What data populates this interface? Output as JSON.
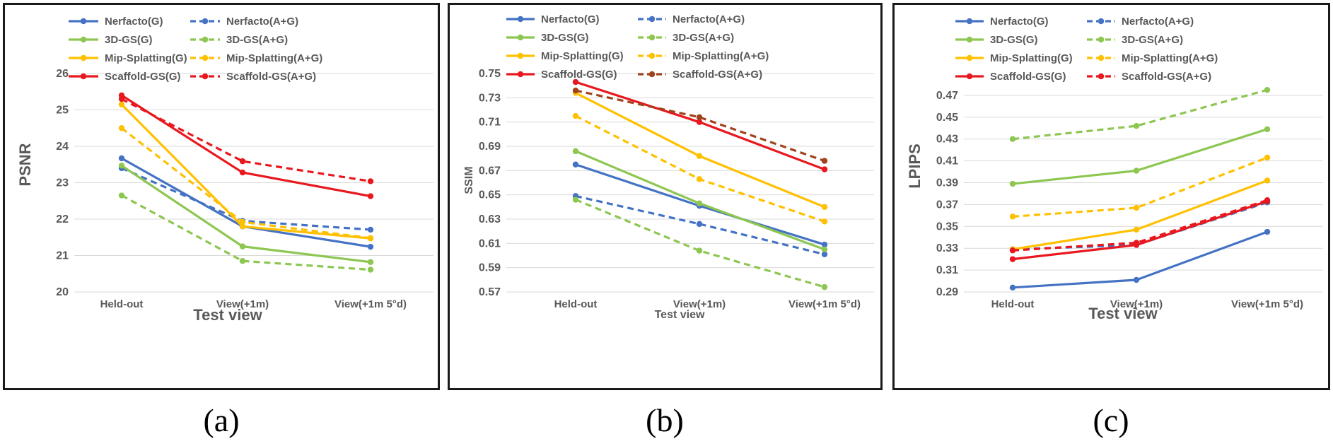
{
  "panels": [
    {
      "caption": "(a)",
      "chart_data": {
        "type": "line",
        "xlabel": "Test view",
        "ylabel": "PSNR",
        "ylim": [
          20,
          26
        ],
        "yticks": [
          "20",
          "21",
          "22",
          "23",
          "24",
          "25",
          "26"
        ],
        "categories": [
          "Held-out",
          "View(+1m)",
          "View(+1m 5°d)"
        ],
        "legend_position": "top",
        "grid": true,
        "series": [
          {
            "name": "Nerfacto(G)",
            "color": "#4472C4",
            "dashed": false,
            "values": [
              23.67,
              21.8,
              21.24
            ]
          },
          {
            "name": "Nerfacto(A+G)",
            "color": "#4472C4",
            "dashed": true,
            "values": [
              23.4,
              21.95,
              21.71
            ]
          },
          {
            "name": "3D-GS(G)",
            "color": "#8DC650",
            "dashed": false,
            "values": [
              23.47,
              21.25,
              20.82
            ]
          },
          {
            "name": "3D-GS(A+G)",
            "color": "#8DC650",
            "dashed": true,
            "values": [
              22.65,
              20.85,
              20.61
            ]
          },
          {
            "name": "Mip-Splatting(G)",
            "color": "#FFC000",
            "dashed": false,
            "values": [
              25.15,
              21.8,
              21.47
            ]
          },
          {
            "name": "Mip-Splatting(A+G)",
            "color": "#FFC000",
            "dashed": true,
            "values": [
              24.5,
              21.92,
              21.48
            ]
          },
          {
            "name": "Scaffold-GS(G)",
            "color": "#E8181E",
            "dashed": false,
            "values": [
              25.4,
              23.28,
              22.63
            ]
          },
          {
            "name": "Scaffold-GS(A+G)",
            "color": "#E8181E",
            "dashed": true,
            "values": [
              25.3,
              23.59,
              23.04
            ]
          }
        ]
      }
    },
    {
      "caption": "(b)",
      "chart_data": {
        "type": "line",
        "xlabel": "Test view",
        "ylabel": "SSIM",
        "ylim": [
          0.57,
          0.75
        ],
        "yticks": [
          "0.57",
          "0.59",
          "0.61",
          "0.63",
          "0.65",
          "0.67",
          "0.69",
          "0.71",
          "0.73",
          "0.75"
        ],
        "categories": [
          "Held-out",
          "View(+1m)",
          "View(+1m 5°d)"
        ],
        "legend_position": "top",
        "grid": true,
        "series": [
          {
            "name": "Nerfacto(G)",
            "color": "#4472C4",
            "dashed": false,
            "values": [
              0.675,
              0.641,
              0.609
            ]
          },
          {
            "name": "Nerfacto(A+G)",
            "color": "#4472C4",
            "dashed": true,
            "values": [
              0.649,
              0.626,
              0.601
            ]
          },
          {
            "name": "3D-GS(G)",
            "color": "#8DC650",
            "dashed": false,
            "values": [
              0.686,
              0.643,
              0.605
            ]
          },
          {
            "name": "3D-GS(A+G)",
            "color": "#8DC650",
            "dashed": true,
            "values": [
              0.646,
              0.604,
              0.574
            ]
          },
          {
            "name": "Mip-Splatting(G)",
            "color": "#FFC000",
            "dashed": false,
            "values": [
              0.734,
              0.682,
              0.64
            ]
          },
          {
            "name": "Mip-Splatting(A+G)",
            "color": "#FFC000",
            "dashed": true,
            "values": [
              0.715,
              0.663,
              0.628
            ]
          },
          {
            "name": "Scaffold-GS(G)",
            "color": "#E8181E",
            "dashed": false,
            "values": [
              0.743,
              0.71,
              0.671
            ]
          },
          {
            "name": "Scaffold-GS(A+G)",
            "color": "#A0421C",
            "dashed": true,
            "values": [
              0.736,
              0.714,
              0.678
            ]
          }
        ]
      }
    },
    {
      "caption": "(c)",
      "chart_data": {
        "type": "line",
        "xlabel": "Test view",
        "ylabel": "LPIPS",
        "ylim": [
          0.29,
          0.49
        ],
        "yticks": [
          "0.29",
          "0.31",
          "0.33",
          "0.35",
          "0.37",
          "0.39",
          "0.41",
          "0.43",
          "0.45",
          "0.47"
        ],
        "categories": [
          "Held-out",
          "View(+1m)",
          "View(+1m 5°d)"
        ],
        "legend_position": "top",
        "grid": true,
        "series": [
          {
            "name": "Nerfacto(G)",
            "color": "#4472C4",
            "dashed": false,
            "values": [
              0.294,
              0.301,
              0.345
            ]
          },
          {
            "name": "Nerfacto(A+G)",
            "color": "#4472C4",
            "dashed": true,
            "values": [
              0.329,
              0.333,
              0.372
            ]
          },
          {
            "name": "3D-GS(G)",
            "color": "#8DC650",
            "dashed": false,
            "values": [
              0.389,
              0.401,
              0.439
            ]
          },
          {
            "name": "3D-GS(A+G)",
            "color": "#8DC650",
            "dashed": true,
            "values": [
              0.43,
              0.442,
              0.475
            ]
          },
          {
            "name": "Mip-Splatting(G)",
            "color": "#FFC000",
            "dashed": false,
            "values": [
              0.329,
              0.347,
              0.392
            ]
          },
          {
            "name": "Mip-Splatting(A+G)",
            "color": "#FFC000",
            "dashed": true,
            "values": [
              0.359,
              0.367,
              0.413
            ]
          },
          {
            "name": "Scaffold-GS(G)",
            "color": "#E8181E",
            "dashed": false,
            "values": [
              0.32,
              0.333,
              0.373
            ]
          },
          {
            "name": "Scaffold-GS(A+G)",
            "color": "#E8181E",
            "dashed": true,
            "values": [
              0.328,
              0.335,
              0.374
            ]
          }
        ]
      }
    }
  ]
}
